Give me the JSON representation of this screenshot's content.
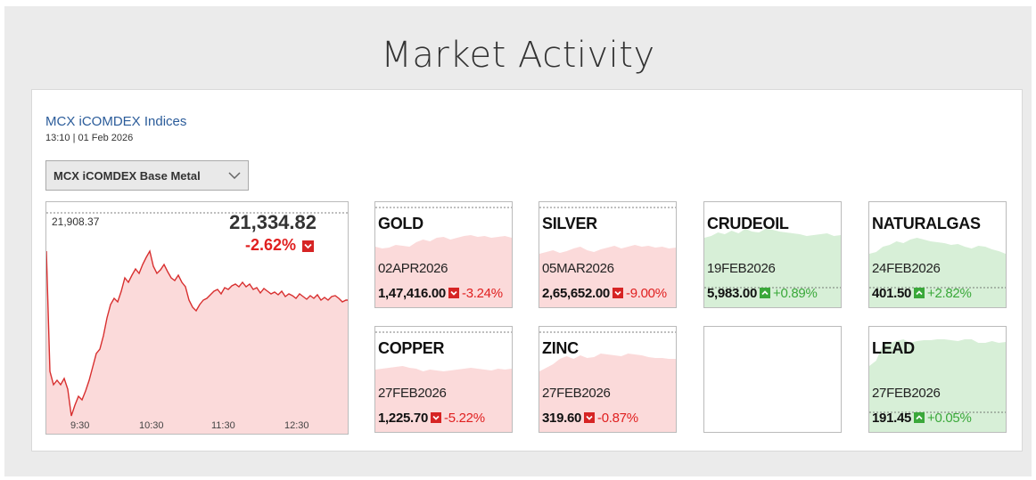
{
  "page_title": "Market Activity",
  "index": {
    "title": "MCX iCOMDEX Indices",
    "timestamp": "13:10 | 01 Feb 2026",
    "selected_index": "MCX iCOMDEX Base Metal",
    "prev_close": "21,908.37",
    "last": "21,334.82",
    "change": "-2.62%",
    "direction": "down",
    "time_ticks": [
      "9:30",
      "10:30",
      "11:30",
      "12:30"
    ]
  },
  "colors": {
    "down_line": "#d82f2f",
    "down_fill": "#fbdada",
    "up_line": "#c6e8c6",
    "up_fill": "#d7efd7",
    "up_text": "#3aa83a",
    "down_text": "#e02020",
    "link": "#2b5c9a"
  },
  "cards": [
    {
      "name": "GOLD",
      "expiry": "02APR2026",
      "price": "1,47,416.00",
      "change": "-3.24%",
      "direction": "down"
    },
    {
      "name": "SILVER",
      "expiry": "05MAR2026",
      "price": "2,65,652.00",
      "change": "-9.00%",
      "direction": "down"
    },
    {
      "name": "CRUDEOIL",
      "expiry": "19FEB2026",
      "price": "5,983.00",
      "change": "+0.89%",
      "direction": "up"
    },
    {
      "name": "NATURALGAS",
      "expiry": "24FEB2026",
      "price": "401.50",
      "change": "+2.82%",
      "direction": "up"
    },
    {
      "name": "COPPER",
      "expiry": "27FEB2026",
      "price": "1,225.70",
      "change": "-5.22%",
      "direction": "down"
    },
    {
      "name": "ZINC",
      "expiry": "27FEB2026",
      "price": "319.60",
      "change": "-0.87%",
      "direction": "down"
    },
    {
      "name": "",
      "expiry": "",
      "price": "",
      "change": "",
      "direction": "none"
    },
    {
      "name": "LEAD",
      "expiry": "27FEB2026",
      "price": "191.45",
      "change": "+0.05%",
      "direction": "up"
    }
  ]
}
